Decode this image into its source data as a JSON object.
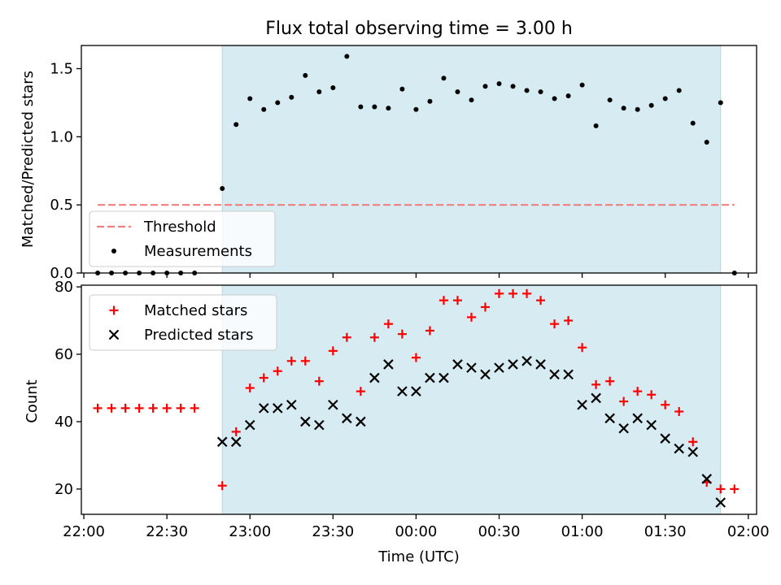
{
  "chart_data": [
    {
      "type": "scatter",
      "title": "Flux total observing time = 3.00 h",
      "xlabel": "",
      "ylabel": "Matched/Predicted stars",
      "ylim": [
        0,
        1.67
      ],
      "yticks": [
        "0.0",
        "0.5",
        "1.0",
        "1.5"
      ],
      "x_tick_labels": [],
      "shaded_region": {
        "from": "22:50",
        "to": "01:50",
        "color": "#add8e6"
      },
      "threshold": {
        "name": "Threshold",
        "value": 0.5,
        "from": "22:05",
        "to": "01:55",
        "color": "#f08080"
      },
      "legend": {
        "placement": "lower left",
        "entries": [
          "Threshold",
          "Measurements"
        ]
      },
      "series": [
        {
          "name": "Measurements",
          "color": "#000000",
          "marker": "dot",
          "points": [
            [
              "22:05",
              0.0
            ],
            [
              "22:10",
              0.0
            ],
            [
              "22:15",
              0.0
            ],
            [
              "22:20",
              0.0
            ],
            [
              "22:25",
              0.0
            ],
            [
              "22:30",
              0.0
            ],
            [
              "22:35",
              0.0
            ],
            [
              "22:40",
              0.0
            ],
            [
              "22:50",
              0.62
            ],
            [
              "22:55",
              1.09
            ],
            [
              "23:00",
              1.28
            ],
            [
              "23:05",
              1.2
            ],
            [
              "23:10",
              1.25
            ],
            [
              "23:15",
              1.29
            ],
            [
              "23:20",
              1.45
            ],
            [
              "23:25",
              1.33
            ],
            [
              "23:30",
              1.36
            ],
            [
              "23:35",
              1.59
            ],
            [
              "23:40",
              1.22
            ],
            [
              "23:45",
              1.22
            ],
            [
              "23:50",
              1.21
            ],
            [
              "23:55",
              1.35
            ],
            [
              "00:00",
              1.2
            ],
            [
              "00:05",
              1.26
            ],
            [
              "00:10",
              1.43
            ],
            [
              "00:15",
              1.33
            ],
            [
              "00:20",
              1.27
            ],
            [
              "00:25",
              1.37
            ],
            [
              "00:30",
              1.39
            ],
            [
              "00:35",
              1.37
            ],
            [
              "00:40",
              1.34
            ],
            [
              "00:45",
              1.33
            ],
            [
              "00:50",
              1.28
            ],
            [
              "00:55",
              1.3
            ],
            [
              "01:00",
              1.38
            ],
            [
              "01:05",
              1.08
            ],
            [
              "01:10",
              1.27
            ],
            [
              "01:15",
              1.21
            ],
            [
              "01:20",
              1.2
            ],
            [
              "01:25",
              1.23
            ],
            [
              "01:30",
              1.28
            ],
            [
              "01:35",
              1.34
            ],
            [
              "01:40",
              1.1
            ],
            [
              "01:45",
              0.96
            ],
            [
              "01:50",
              1.25
            ],
            [
              "01:55",
              0.0
            ]
          ]
        }
      ]
    },
    {
      "type": "scatter",
      "title": "",
      "xlabel": "Time (UTC)",
      "ylabel": "Count",
      "ylim": [
        12.5,
        80.5
      ],
      "yticks": [
        "20",
        "40",
        "60",
        "80"
      ],
      "x_tick_labels": [
        "22:00",
        "22:30",
        "23:00",
        "23:30",
        "00:00",
        "00:30",
        "01:00",
        "01:30",
        "02:00"
      ],
      "shaded_region": {
        "from": "22:50",
        "to": "01:50",
        "color": "#add8e6"
      },
      "legend": {
        "placement": "upper left",
        "entries": [
          "Matched stars",
          "Predicted stars"
        ]
      },
      "series": [
        {
          "name": "Matched stars",
          "color": "#ff0000",
          "marker": "plus",
          "points": [
            [
              "22:05",
              44
            ],
            [
              "22:10",
              44
            ],
            [
              "22:15",
              44
            ],
            [
              "22:20",
              44
            ],
            [
              "22:25",
              44
            ],
            [
              "22:30",
              44
            ],
            [
              "22:35",
              44
            ],
            [
              "22:40",
              44
            ],
            [
              "22:50",
              21
            ],
            [
              "22:55",
              37
            ],
            [
              "23:00",
              50
            ],
            [
              "23:05",
              53
            ],
            [
              "23:10",
              55
            ],
            [
              "23:15",
              58
            ],
            [
              "23:20",
              58
            ],
            [
              "23:25",
              52
            ],
            [
              "23:30",
              61
            ],
            [
              "23:35",
              65
            ],
            [
              "23:40",
              49
            ],
            [
              "23:45",
              65
            ],
            [
              "23:50",
              69
            ],
            [
              "23:55",
              66
            ],
            [
              "00:00",
              59
            ],
            [
              "00:05",
              67
            ],
            [
              "00:10",
              76
            ],
            [
              "00:15",
              76
            ],
            [
              "00:20",
              71
            ],
            [
              "00:25",
              74
            ],
            [
              "00:30",
              78
            ],
            [
              "00:35",
              78
            ],
            [
              "00:40",
              78
            ],
            [
              "00:45",
              76
            ],
            [
              "00:50",
              69
            ],
            [
              "00:55",
              70
            ],
            [
              "01:00",
              62
            ],
            [
              "01:05",
              51
            ],
            [
              "01:10",
              52
            ],
            [
              "01:15",
              46
            ],
            [
              "01:20",
              49
            ],
            [
              "01:25",
              48
            ],
            [
              "01:30",
              45
            ],
            [
              "01:35",
              43
            ],
            [
              "01:40",
              34
            ],
            [
              "01:45",
              22
            ],
            [
              "01:50",
              20
            ],
            [
              "01:55",
              20
            ]
          ]
        },
        {
          "name": "Predicted stars",
          "color": "#000000",
          "marker": "x",
          "points": [
            [
              "22:50",
              34
            ],
            [
              "22:55",
              34
            ],
            [
              "23:00",
              39
            ],
            [
              "23:05",
              44
            ],
            [
              "23:10",
              44
            ],
            [
              "23:15",
              45
            ],
            [
              "23:20",
              40
            ],
            [
              "23:25",
              39
            ],
            [
              "23:30",
              45
            ],
            [
              "23:35",
              41
            ],
            [
              "23:40",
              40
            ],
            [
              "23:45",
              53
            ],
            [
              "23:50",
              57
            ],
            [
              "23:55",
              49
            ],
            [
              "00:00",
              49
            ],
            [
              "00:05",
              53
            ],
            [
              "00:10",
              53
            ],
            [
              "00:15",
              57
            ],
            [
              "00:20",
              56
            ],
            [
              "00:25",
              54
            ],
            [
              "00:30",
              56
            ],
            [
              "00:35",
              57
            ],
            [
              "00:40",
              58
            ],
            [
              "00:45",
              57
            ],
            [
              "00:50",
              54
            ],
            [
              "00:55",
              54
            ],
            [
              "01:00",
              45
            ],
            [
              "01:05",
              47
            ],
            [
              "01:10",
              41
            ],
            [
              "01:15",
              38
            ],
            [
              "01:20",
              41
            ],
            [
              "01:25",
              39
            ],
            [
              "01:30",
              35
            ],
            [
              "01:35",
              32
            ],
            [
              "01:40",
              31
            ],
            [
              "01:45",
              23
            ],
            [
              "01:50",
              16
            ]
          ]
        }
      ]
    }
  ]
}
